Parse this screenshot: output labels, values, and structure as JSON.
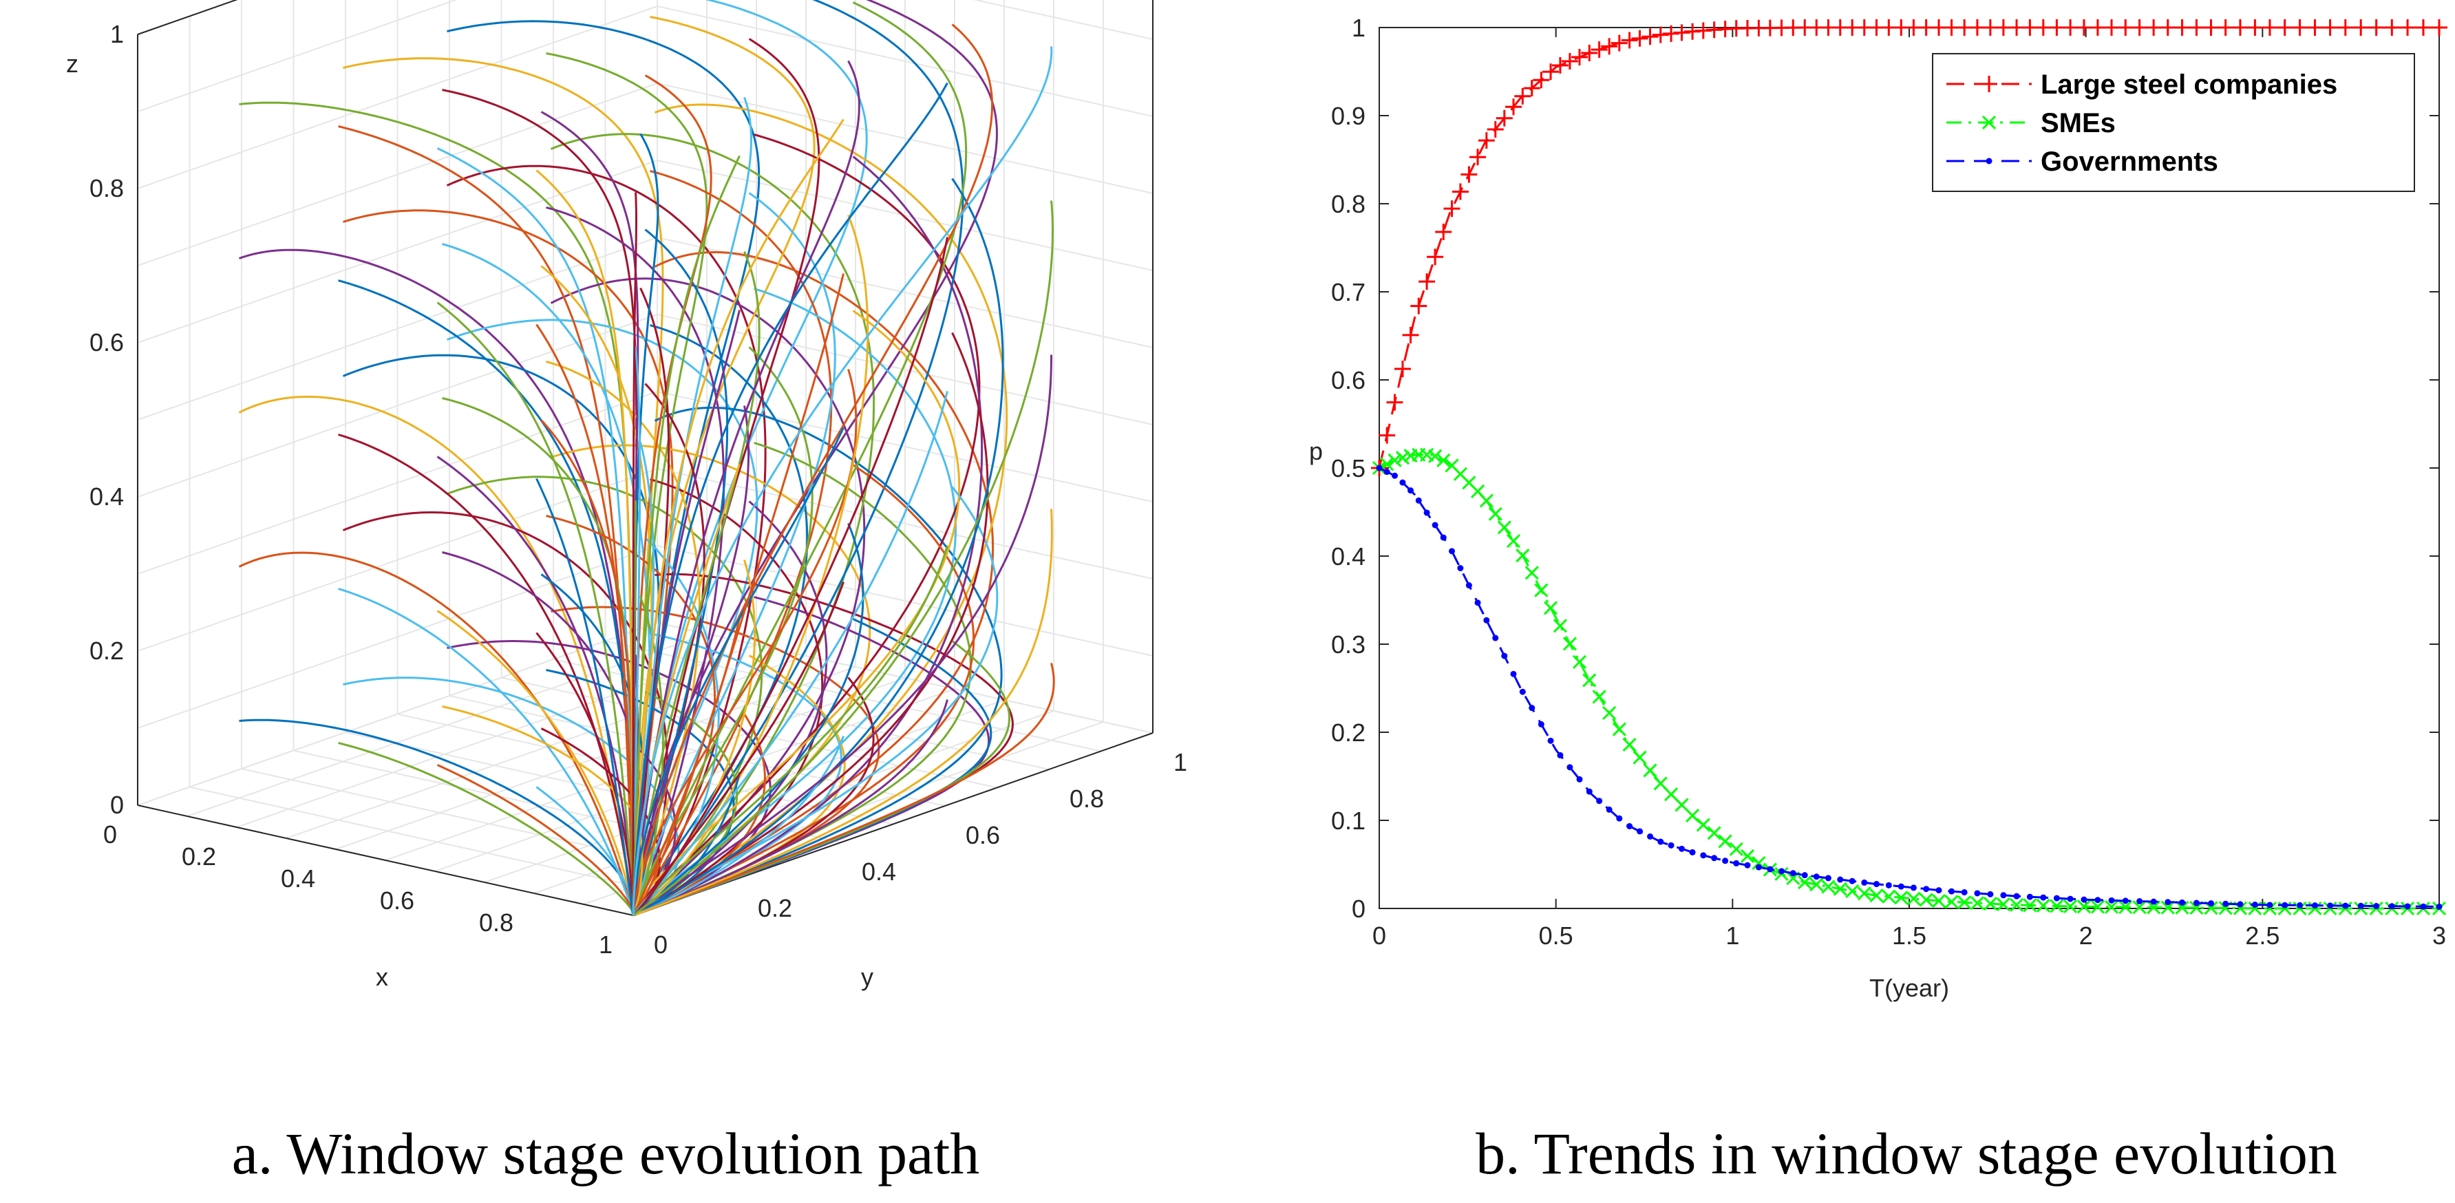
{
  "colors": {
    "red": "#ff0000",
    "green": "#00ff00",
    "blue": "#0000ff",
    "axis": "#262626",
    "grid": "#e6e6e6",
    "palette": [
      "#0072bd",
      "#d95319",
      "#edb120",
      "#7e2f8e",
      "#77ac30",
      "#4dbeee",
      "#a2142f"
    ]
  },
  "captions": {
    "a": "a. Window stage evolution path",
    "b": "b. Trends in window stage evolution"
  },
  "chart_data": [
    {
      "type": "line",
      "panel": "a",
      "projection": "3d",
      "xlabel": "x",
      "ylabel": "y",
      "zlabel": "z",
      "xticks": [
        "0",
        "0.2",
        "0.4",
        "0.6",
        "0.8",
        "1"
      ],
      "yticks": [
        "0",
        "0.2",
        "0.4",
        "0.6",
        "0.8",
        "1"
      ],
      "zticks": [
        "0",
        "0.2",
        "0.4",
        "0.6",
        "0.8",
        "1"
      ],
      "xlim": [
        0,
        1
      ],
      "ylim": [
        0,
        1
      ],
      "zlim": [
        0,
        1
      ],
      "grid": true,
      "initial_conditions": {
        "x0": [
          0.1,
          0.3,
          0.5,
          0.7,
          0.9
        ],
        "y0": [
          0.1,
          0.3,
          0.5,
          0.7,
          0.9
        ],
        "z0": [
          0.1,
          0.3,
          0.5,
          0.7,
          0.9
        ]
      },
      "converges_to": {
        "x": 1,
        "y": 0,
        "z": 0
      }
    },
    {
      "type": "line",
      "panel": "b",
      "xlabel": "T(year)",
      "ylabel": "p",
      "xlim": [
        0,
        3
      ],
      "ylim": [
        0,
        1
      ],
      "xticks": [
        "0",
        "0.5",
        "1",
        "1.5",
        "2",
        "2.5",
        "3"
      ],
      "yticks": [
        "0",
        "0.1",
        "0.2",
        "0.3",
        "0.4",
        "0.5",
        "0.6",
        "0.7",
        "0.8",
        "0.9",
        "1"
      ],
      "legend_position": "top-right",
      "series": [
        {
          "name": "Large steel companies",
          "color": "#ff0000",
          "marker": "+",
          "style": "dashed",
          "x": [
            0,
            0.1,
            0.2,
            0.3,
            0.4,
            0.5,
            0.6,
            0.7,
            0.8,
            0.9,
            1.0,
            1.2,
            1.5,
            2.0,
            2.5,
            3.0
          ],
          "y": [
            0.5,
            0.67,
            0.79,
            0.87,
            0.92,
            0.955,
            0.972,
            0.985,
            0.992,
            0.996,
            0.999,
            1.0,
            1.0,
            1.0,
            1.0,
            1.0
          ]
        },
        {
          "name": "SMEs",
          "color": "#00ff00",
          "marker": "x",
          "style": "dashdot",
          "x": [
            0,
            0.05,
            0.1,
            0.15,
            0.2,
            0.3,
            0.4,
            0.5,
            0.6,
            0.7,
            0.8,
            0.9,
            1.0,
            1.1,
            1.2,
            1.4,
            1.6,
            1.8,
            2.0,
            2.5,
            3.0
          ],
          "y": [
            0.5,
            0.51,
            0.515,
            0.515,
            0.505,
            0.465,
            0.405,
            0.33,
            0.255,
            0.19,
            0.14,
            0.1,
            0.07,
            0.045,
            0.03,
            0.015,
            0.008,
            0.004,
            0.002,
            0.0,
            0.0
          ]
        },
        {
          "name": "Governments",
          "color": "#0000ff",
          "marker": "dot",
          "style": "dashed",
          "x": [
            0,
            0.05,
            0.1,
            0.2,
            0.3,
            0.4,
            0.5,
            0.6,
            0.7,
            0.8,
            0.9,
            1.0,
            1.2,
            1.4,
            1.6,
            1.8,
            2.0,
            2.5,
            3.0
          ],
          "y": [
            0.5,
            0.49,
            0.47,
            0.41,
            0.33,
            0.25,
            0.18,
            0.13,
            0.095,
            0.075,
            0.062,
            0.052,
            0.038,
            0.028,
            0.02,
            0.014,
            0.01,
            0.004,
            0.002
          ]
        }
      ]
    }
  ]
}
